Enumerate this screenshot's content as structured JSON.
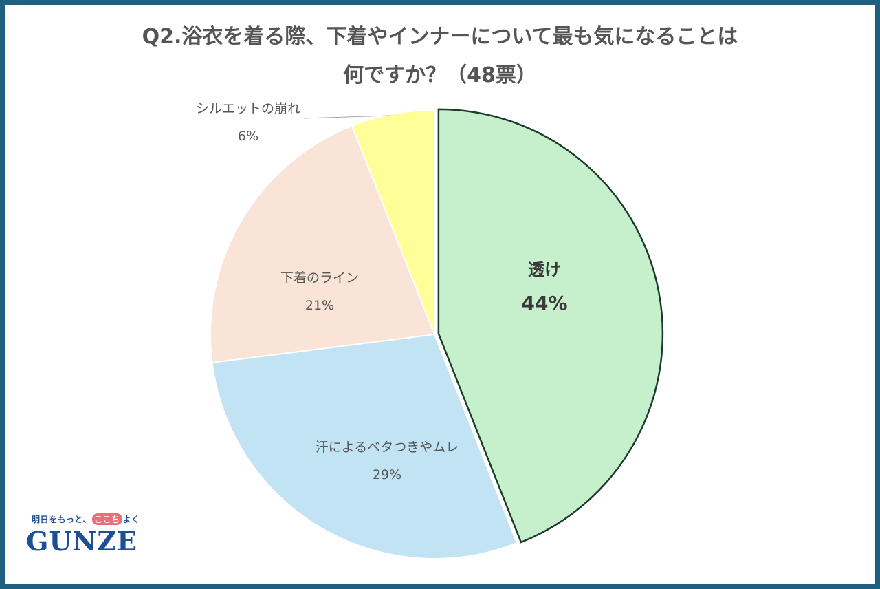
{
  "title": {
    "line1": "Q2.浴衣を着る際、下着やインナーについて最も気になることは",
    "line2": "何ですか？（48票）"
  },
  "chart_data": {
    "type": "pie",
    "slices": [
      {
        "label": "透け",
        "pct_label": "44%",
        "value": 44,
        "color": "#c6efcb",
        "emphasis": true
      },
      {
        "label": "汗によるベタつきやムレ",
        "pct_label": "29%",
        "value": 29,
        "color": "#c2e3f4"
      },
      {
        "label": "下着のライン",
        "pct_label": "21%",
        "value": 21,
        "color": "#fae3d7"
      },
      {
        "label": "シルエットの崩れ",
        "pct_label": "6%",
        "value": 6,
        "color": "#ffff99"
      }
    ],
    "start": "12 o'clock",
    "direction": "clockwise"
  },
  "logo": {
    "tagline_a": "明日をもっと、",
    "tagline_b": "ここち",
    "tagline_c": "よく",
    "wordmark": "GUNZE"
  }
}
